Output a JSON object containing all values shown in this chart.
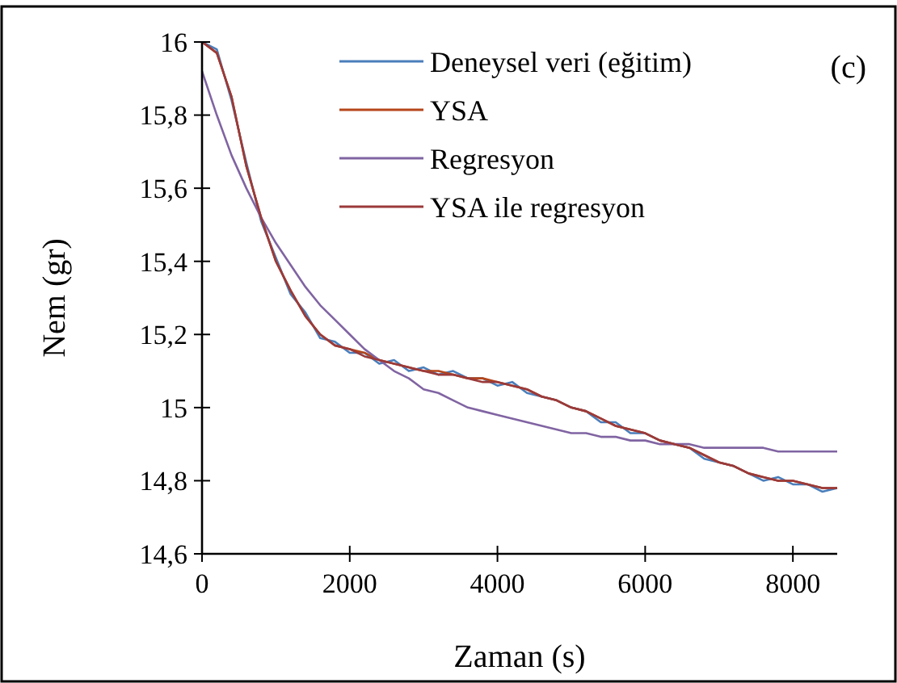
{
  "chart_data": {
    "type": "line",
    "xlabel": "Zaman (s)",
    "ylabel": "Nem (gr)",
    "annotations": [
      "(c)"
    ],
    "x": [
      0,
      200,
      400,
      600,
      800,
      1000,
      1200,
      1400,
      1600,
      1800,
      2000,
      2200,
      2400,
      2600,
      2800,
      3000,
      3200,
      3400,
      3600,
      3800,
      4000,
      4200,
      4400,
      4600,
      4800,
      5000,
      5200,
      5400,
      5600,
      5800,
      6000,
      6200,
      6400,
      6600,
      6800,
      7000,
      7200,
      7400,
      7600,
      7800,
      8000,
      8200,
      8400,
      8600
    ],
    "xlim": [
      0,
      8600
    ],
    "xticks": [
      0,
      2000,
      4000,
      6000,
      8000
    ],
    "ylim": [
      14.6,
      16
    ],
    "yticks": [
      {
        "value": 14.6,
        "label": "14,6"
      },
      {
        "value": 14.8,
        "label": "14,8"
      },
      {
        "value": 15,
        "label": "15"
      },
      {
        "value": 15.2,
        "label": "15,2"
      },
      {
        "value": 15.4,
        "label": "15,4"
      },
      {
        "value": 15.6,
        "label": "15,6"
      },
      {
        "value": 15.8,
        "label": "15,8"
      },
      {
        "value": 16,
        "label": "16"
      }
    ],
    "legend": "top right",
    "grid": false,
    "line_style": "solid",
    "marker": "none",
    "series": [
      {
        "name": "Deneysel veri (eğitim)",
        "color": "#4a7ebb",
        "values": [
          16.0,
          15.98,
          15.84,
          15.67,
          15.51,
          15.41,
          15.31,
          15.26,
          15.19,
          15.18,
          15.15,
          15.15,
          15.12,
          15.13,
          15.1,
          15.11,
          15.09,
          15.1,
          15.08,
          15.08,
          15.06,
          15.07,
          15.04,
          15.03,
          15.02,
          15.0,
          14.99,
          14.96,
          14.96,
          14.93,
          14.93,
          14.91,
          14.9,
          14.89,
          14.86,
          14.85,
          14.84,
          14.82,
          14.8,
          14.81,
          14.79,
          14.79,
          14.77,
          14.78
        ]
      },
      {
        "name": "YSA",
        "color": "#b5461a",
        "values": [
          16.0,
          15.97,
          15.85,
          15.66,
          15.52,
          15.4,
          15.32,
          15.25,
          15.2,
          15.17,
          15.16,
          15.15,
          15.13,
          15.12,
          15.11,
          15.1,
          15.1,
          15.09,
          15.08,
          15.08,
          15.07,
          15.06,
          15.05,
          15.03,
          15.02,
          15.0,
          14.99,
          14.97,
          14.95,
          14.94,
          14.93,
          14.91,
          14.9,
          14.89,
          14.87,
          14.85,
          14.84,
          14.82,
          14.81,
          14.8,
          14.8,
          14.79,
          14.78,
          14.78
        ]
      },
      {
        "name": "Regresyon",
        "color": "#8064a2",
        "values": [
          15.92,
          15.8,
          15.69,
          15.6,
          15.52,
          15.45,
          15.39,
          15.33,
          15.28,
          15.24,
          15.2,
          15.16,
          15.13,
          15.1,
          15.08,
          15.05,
          15.04,
          15.02,
          15.0,
          14.99,
          14.98,
          14.97,
          14.96,
          14.95,
          14.94,
          14.93,
          14.93,
          14.92,
          14.92,
          14.91,
          14.91,
          14.9,
          14.9,
          14.9,
          14.89,
          14.89,
          14.89,
          14.89,
          14.89,
          14.88,
          14.88,
          14.88,
          14.88,
          14.88
        ]
      },
      {
        "name": "YSA ile regresyon",
        "color": "#9b3a3a",
        "values": [
          16.0,
          15.97,
          15.85,
          15.66,
          15.52,
          15.4,
          15.32,
          15.25,
          15.2,
          15.17,
          15.16,
          15.14,
          15.13,
          15.12,
          15.11,
          15.1,
          15.09,
          15.09,
          15.08,
          15.07,
          15.07,
          15.06,
          15.05,
          15.03,
          15.02,
          15.0,
          14.99,
          14.97,
          14.95,
          14.94,
          14.93,
          14.91,
          14.9,
          14.89,
          14.87,
          14.85,
          14.84,
          14.82,
          14.81,
          14.8,
          14.8,
          14.79,
          14.78,
          14.78
        ]
      }
    ]
  }
}
